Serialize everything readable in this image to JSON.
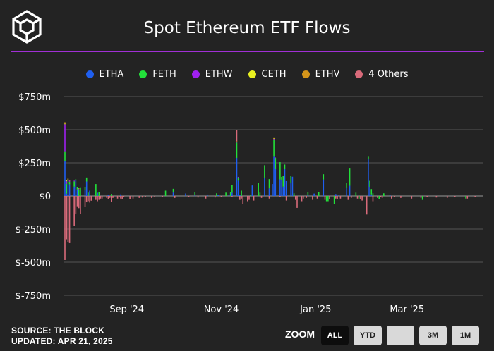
{
  "title": "Spot Ethereum ETF Flows",
  "source": "SOURCE: THE BLOCK",
  "updated": "UPDATED: APR 21, 2025",
  "zoom": {
    "label": "ZOOM",
    "buttons": [
      "ALL",
      "YTD",
      "",
      "3M",
      "1M"
    ],
    "active": "ALL"
  },
  "colors": {
    "background": "#232323",
    "accent_line": "#a12fd6"
  },
  "chart_data": {
    "type": "bar",
    "stacked": true,
    "title": "Spot Ethereum ETF Flows",
    "xlabel": "",
    "ylabel": "",
    "y_ticks": [
      "$750m",
      "$500m",
      "$250m",
      "$0",
      "$-250m",
      "$-500m",
      "$-750m"
    ],
    "y_tick_values": [
      750,
      500,
      250,
      0,
      -250,
      -500,
      -750
    ],
    "ylim": [
      -750,
      750
    ],
    "x_tick_labels": [
      "Sep '24",
      "Nov '24",
      "Jan '25",
      "Mar '25"
    ],
    "x_tick_dates": [
      "2024-09-01",
      "2024-11-01",
      "2025-01-01",
      "2025-03-01"
    ],
    "x_range": [
      "2024-07-23",
      "2025-04-18"
    ],
    "grid": true,
    "legend_position": "top",
    "series": [
      {
        "name": "ETHA",
        "color": "#1f5ff0",
        "points": [
          [
            "2024-07-23",
            266
          ],
          [
            "2024-07-24",
            17
          ],
          [
            "2024-07-25",
            90
          ],
          [
            "2024-07-26",
            87
          ],
          [
            "2024-07-29",
            70
          ],
          [
            "2024-07-30",
            118
          ],
          [
            "2024-07-31",
            49
          ],
          [
            "2024-08-05",
            47
          ],
          [
            "2024-08-06",
            109
          ],
          [
            "2024-08-08",
            40
          ],
          [
            "2024-08-13",
            24
          ],
          [
            "2024-08-20",
            8
          ],
          [
            "2024-08-28",
            12
          ],
          [
            "2024-10-01",
            26
          ],
          [
            "2024-10-09",
            19
          ],
          [
            "2024-10-15",
            9
          ],
          [
            "2024-10-23",
            11
          ],
          [
            "2024-10-30",
            10
          ],
          [
            "2024-11-06",
            8
          ],
          [
            "2024-11-08",
            24
          ],
          [
            "2024-11-11",
            287
          ],
          [
            "2024-11-12",
            115
          ],
          [
            "2024-11-13",
            9
          ],
          [
            "2024-11-21",
            79
          ],
          [
            "2024-11-29",
            137
          ],
          [
            "2024-12-02",
            57
          ],
          [
            "2024-12-04",
            90
          ],
          [
            "2024-12-05",
            296
          ],
          [
            "2024-12-06",
            202
          ],
          [
            "2024-12-09",
            125
          ],
          [
            "2024-12-10",
            119
          ],
          [
            "2024-12-11",
            70
          ],
          [
            "2024-12-12",
            202
          ],
          [
            "2024-12-13",
            112
          ],
          [
            "2024-12-16",
            99
          ],
          [
            "2024-12-17",
            145
          ],
          [
            "2024-12-27",
            11
          ],
          [
            "2024-12-31",
            18
          ],
          [
            "2025-01-06",
            124
          ],
          [
            "2025-01-14",
            14
          ],
          [
            "2025-01-16",
            5
          ],
          [
            "2025-01-21",
            58
          ],
          [
            "2025-01-23",
            77
          ],
          [
            "2025-02-04",
            276
          ],
          [
            "2025-02-05",
            64
          ],
          [
            "2025-02-06",
            12
          ],
          [
            "2025-02-18",
            10
          ]
        ]
      },
      {
        "name": "FETH",
        "color": "#22e03a",
        "points": [
          [
            "2024-07-23",
            71
          ],
          [
            "2024-07-24",
            74
          ],
          [
            "2024-07-25",
            24
          ],
          [
            "2024-07-26",
            20
          ],
          [
            "2024-07-29",
            40
          ],
          [
            "2024-07-30",
            8
          ],
          [
            "2024-07-31",
            19
          ],
          [
            "2024-08-01",
            50
          ],
          [
            "2024-08-02",
            60
          ],
          [
            "2024-08-05",
            17
          ],
          [
            "2024-08-06",
            30
          ],
          [
            "2024-08-07",
            25
          ],
          [
            "2024-08-12",
            90
          ],
          [
            "2024-08-14",
            30
          ],
          [
            "2024-08-22",
            15
          ],
          [
            "2024-09-26",
            40
          ],
          [
            "2024-10-01",
            28
          ],
          [
            "2024-10-15",
            20
          ],
          [
            "2024-10-29",
            20
          ],
          [
            "2024-11-04",
            25
          ],
          [
            "2024-11-07",
            30
          ],
          [
            "2024-11-08",
            60
          ],
          [
            "2024-11-11",
            115
          ],
          [
            "2024-11-12",
            25
          ],
          [
            "2024-11-14",
            40
          ],
          [
            "2024-11-20",
            10
          ],
          [
            "2024-11-25",
            100
          ],
          [
            "2024-11-26",
            25
          ],
          [
            "2024-11-29",
            95
          ],
          [
            "2024-12-02",
            70
          ],
          [
            "2024-12-05",
            128
          ],
          [
            "2024-12-06",
            85
          ],
          [
            "2024-12-09",
            130
          ],
          [
            "2024-12-10",
            25
          ],
          [
            "2024-12-11",
            80
          ],
          [
            "2024-12-12",
            35
          ],
          [
            "2024-12-16",
            50
          ],
          [
            "2024-12-18",
            20
          ],
          [
            "2024-12-27",
            20
          ],
          [
            "2025-01-03",
            30
          ],
          [
            "2025-01-06",
            40
          ],
          [
            "2025-01-08",
            -40
          ],
          [
            "2025-01-09",
            -40
          ],
          [
            "2025-01-13",
            -60
          ],
          [
            "2025-01-21",
            40
          ],
          [
            "2025-01-23",
            130
          ],
          [
            "2025-01-27",
            25
          ],
          [
            "2025-01-29",
            -20
          ],
          [
            "2025-02-04",
            20
          ],
          [
            "2025-02-05",
            50
          ],
          [
            "2025-02-06",
            40
          ],
          [
            "2025-02-07",
            20
          ],
          [
            "2025-02-11",
            -25
          ],
          [
            "2025-02-14",
            20
          ],
          [
            "2025-03-11",
            -30
          ],
          [
            "2025-04-08",
            -20
          ]
        ]
      },
      {
        "name": "ETHW",
        "color": "#a020f0",
        "points": [
          [
            "2024-07-23",
            204
          ],
          [
            "2024-07-24",
            20
          ],
          [
            "2024-07-25",
            7
          ],
          [
            "2024-07-26",
            8
          ],
          [
            "2024-07-29",
            5
          ],
          [
            "2024-08-01",
            5
          ],
          [
            "2024-11-11",
            5
          ],
          [
            "2024-11-12",
            4
          ],
          [
            "2024-12-05",
            6
          ],
          [
            "2024-12-06",
            3
          ]
        ]
      },
      {
        "name": "CETH",
        "color": "#e8f020",
        "points": [
          [
            "2024-07-23",
            5
          ],
          [
            "2024-07-24",
            6
          ],
          [
            "2024-07-25",
            4
          ],
          [
            "2024-08-01",
            2
          ],
          [
            "2024-11-11",
            3
          ],
          [
            "2024-12-05",
            4
          ]
        ]
      },
      {
        "name": "ETHV",
        "color": "#d4951a",
        "points": [
          [
            "2024-07-23",
            10
          ],
          [
            "2024-07-24",
            4
          ],
          [
            "2024-07-25",
            6
          ],
          [
            "2024-07-26",
            3
          ],
          [
            "2024-11-11",
            4
          ],
          [
            "2024-12-05",
            3
          ]
        ]
      },
      {
        "name": "4 Others",
        "color": "#d86a7a",
        "points": [
          [
            "2024-07-23",
            -484
          ],
          [
            "2024-07-24",
            -327
          ],
          [
            "2024-07-25",
            -346
          ],
          [
            "2024-07-26",
            -356
          ],
          [
            "2024-07-29",
            -224
          ],
          [
            "2024-07-30",
            -133
          ],
          [
            "2024-07-31",
            -78
          ],
          [
            "2024-08-01",
            -92
          ],
          [
            "2024-08-02",
            -134
          ],
          [
            "2024-08-05",
            -80
          ],
          [
            "2024-08-06",
            -48
          ],
          [
            "2024-08-07",
            -39
          ],
          [
            "2024-08-08",
            -50
          ],
          [
            "2024-08-09",
            -36
          ],
          [
            "2024-08-12",
            -30
          ],
          [
            "2024-08-13",
            -40
          ],
          [
            "2024-08-14",
            -30
          ],
          [
            "2024-08-15",
            -20
          ],
          [
            "2024-08-16",
            -20
          ],
          [
            "2024-08-19",
            -15
          ],
          [
            "2024-08-20",
            -25
          ],
          [
            "2024-08-21",
            -15
          ],
          [
            "2024-08-22",
            -45
          ],
          [
            "2024-08-23",
            -15
          ],
          [
            "2024-08-26",
            -20
          ],
          [
            "2024-08-27",
            -10
          ],
          [
            "2024-08-28",
            -20
          ],
          [
            "2024-08-29",
            -25
          ],
          [
            "2024-08-30",
            -10
          ],
          [
            "2024-09-03",
            -25
          ],
          [
            "2024-09-05",
            -20
          ],
          [
            "2024-09-09",
            -15
          ],
          [
            "2024-09-11",
            -12
          ],
          [
            "2024-09-13",
            -10
          ],
          [
            "2024-09-17",
            -15
          ],
          [
            "2024-09-19",
            -10
          ],
          [
            "2024-09-24",
            -8
          ],
          [
            "2024-10-02",
            -15
          ],
          [
            "2024-10-11",
            -10
          ],
          [
            "2024-10-17",
            -12
          ],
          [
            "2024-10-22",
            -20
          ],
          [
            "2024-10-28",
            -12
          ],
          [
            "2024-11-01",
            -10
          ],
          [
            "2024-11-08",
            -10
          ],
          [
            "2024-11-11",
            83
          ],
          [
            "2024-11-13",
            -30
          ],
          [
            "2024-11-14",
            -20
          ],
          [
            "2024-11-15",
            -60
          ],
          [
            "2024-11-18",
            -40
          ],
          [
            "2024-11-19",
            -30
          ],
          [
            "2024-11-22",
            -35
          ],
          [
            "2024-11-27",
            -15
          ],
          [
            "2024-12-02",
            -20
          ],
          [
            "2024-12-09",
            -10
          ],
          [
            "2024-12-13",
            -35
          ],
          [
            "2024-12-19",
            -30
          ],
          [
            "2024-12-20",
            -90
          ],
          [
            "2024-12-23",
            -40
          ],
          [
            "2024-12-24",
            -20
          ],
          [
            "2024-12-26",
            -15
          ],
          [
            "2024-12-30",
            -30
          ],
          [
            "2025-01-02",
            -20
          ],
          [
            "2025-01-07",
            -30
          ],
          [
            "2025-01-10",
            -25
          ],
          [
            "2025-01-14",
            -20
          ],
          [
            "2025-01-15",
            -25
          ],
          [
            "2025-01-17",
            -20
          ],
          [
            "2025-01-22",
            -30
          ],
          [
            "2025-01-24",
            -15
          ],
          [
            "2025-01-28",
            -20
          ],
          [
            "2025-01-30",
            -25
          ],
          [
            "2025-01-31",
            -35
          ],
          [
            "2025-02-03",
            -140
          ],
          [
            "2025-02-07",
            -40
          ],
          [
            "2025-02-10",
            -15
          ],
          [
            "2025-02-12",
            -10
          ],
          [
            "2025-02-13",
            -15
          ],
          [
            "2025-02-19",
            -20
          ],
          [
            "2025-02-21",
            -10
          ],
          [
            "2025-02-25",
            -15
          ],
          [
            "2025-03-04",
            -20
          ],
          [
            "2025-03-10",
            -15
          ],
          [
            "2025-03-14",
            -10
          ],
          [
            "2025-03-20",
            -12
          ],
          [
            "2025-03-27",
            -15
          ],
          [
            "2025-04-01",
            -10
          ],
          [
            "2025-04-09",
            -20
          ],
          [
            "2025-04-14",
            -8
          ]
        ]
      }
    ]
  }
}
